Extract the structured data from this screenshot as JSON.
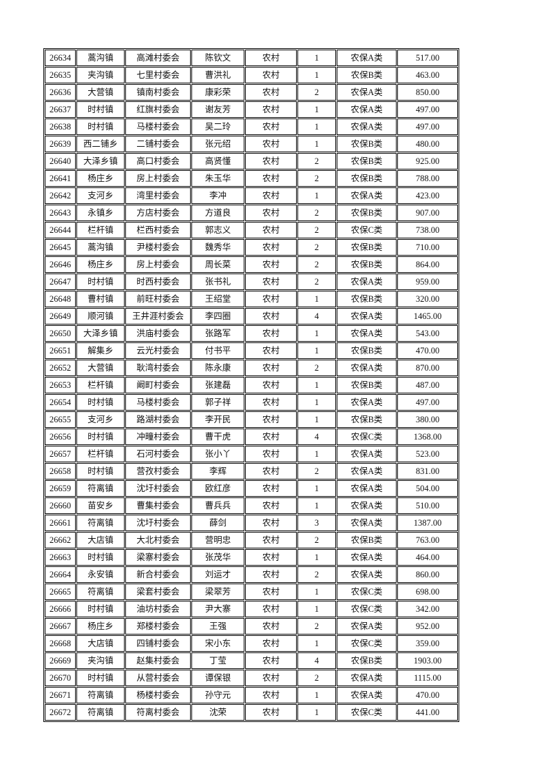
{
  "page": {
    "background_color": "#ffffff",
    "border_color": "#000000",
    "text_color": "#111111"
  },
  "table": {
    "fields": [
      "record-id",
      "town",
      "village-committee",
      "person-name",
      "residence-type",
      "person-count",
      "insurance-category",
      "amount"
    ],
    "rows": [
      [
        "26634",
        "蒿沟镇",
        "高滩村委会",
        "陈钦文",
        "农村",
        "1",
        "农保A类",
        "517.00"
      ],
      [
        "26635",
        "夹沟镇",
        "七里村委会",
        "曹洪礼",
        "农村",
        "1",
        "农保B类",
        "463.00"
      ],
      [
        "26636",
        "大营镇",
        "镇南村委会",
        "康彩荣",
        "农村",
        "2",
        "农保A类",
        "850.00"
      ],
      [
        "26637",
        "时村镇",
        "红旗村委会",
        "谢友芳",
        "农村",
        "1",
        "农保A类",
        "497.00"
      ],
      [
        "26638",
        "时村镇",
        "马楼村委会",
        "吴二玲",
        "农村",
        "1",
        "农保A类",
        "497.00"
      ],
      [
        "26639",
        "西二铺乡",
        "二铺村委会",
        "张元绍",
        "农村",
        "1",
        "农保B类",
        "480.00"
      ],
      [
        "26640",
        "大泽乡镇",
        "高口村委会",
        "高贤懂",
        "农村",
        "2",
        "农保B类",
        "925.00"
      ],
      [
        "26641",
        "杨庄乡",
        "房上村委会",
        "朱玉华",
        "农村",
        "2",
        "农保B类",
        "788.00"
      ],
      [
        "26642",
        "支河乡",
        "湾里村委会",
        "李冲",
        "农村",
        "1",
        "农保A类",
        "423.00"
      ],
      [
        "26643",
        "永镇乡",
        "方店村委会",
        "方道良",
        "农村",
        "2",
        "农保B类",
        "907.00"
      ],
      [
        "26644",
        "栏杆镇",
        "栏西村委会",
        "郭志义",
        "农村",
        "2",
        "农保C类",
        "738.00"
      ],
      [
        "26645",
        "蒿沟镇",
        "尹楼村委会",
        "魏秀华",
        "农村",
        "2",
        "农保B类",
        "710.00"
      ],
      [
        "26646",
        "杨庄乡",
        "房上村委会",
        "周长菜",
        "农村",
        "2",
        "农保B类",
        "864.00"
      ],
      [
        "26647",
        "时村镇",
        "时西村委会",
        "张书礼",
        "农村",
        "2",
        "农保A类",
        "959.00"
      ],
      [
        "26648",
        "曹村镇",
        "前旺村委会",
        "王绍堂",
        "农村",
        "1",
        "农保B类",
        "320.00"
      ],
      [
        "26649",
        "顺河镇",
        "王井涯村委会",
        "李四圈",
        "农村",
        "4",
        "农保A类",
        "1465.00"
      ],
      [
        "26650",
        "大泽乡镇",
        "洪庙村委会",
        "张路军",
        "农村",
        "1",
        "农保A类",
        "543.00"
      ],
      [
        "26651",
        "解集乡",
        "云光村委会",
        "付书平",
        "农村",
        "1",
        "农保B类",
        "470.00"
      ],
      [
        "26652",
        "大营镇",
        "耿湾村委会",
        "陈永康",
        "农村",
        "2",
        "农保A类",
        "870.00"
      ],
      [
        "26653",
        "栏杆镇",
        "阚町村委会",
        "张建磊",
        "农村",
        "1",
        "农保B类",
        "487.00"
      ],
      [
        "26654",
        "时村镇",
        "马楼村委会",
        "郭子祥",
        "农村",
        "1",
        "农保A类",
        "497.00"
      ],
      [
        "26655",
        "支河乡",
        "路湖村委会",
        "李开民",
        "农村",
        "1",
        "农保B类",
        "380.00"
      ],
      [
        "26656",
        "时村镇",
        "冲疃村委会",
        "曹干虎",
        "农村",
        "4",
        "农保C类",
        "1368.00"
      ],
      [
        "26657",
        "栏杆镇",
        "石河村委会",
        "张小丫",
        "农村",
        "1",
        "农保A类",
        "523.00"
      ],
      [
        "26658",
        "时村镇",
        "营孜村委会",
        "李辉",
        "农村",
        "2",
        "农保A类",
        "831.00"
      ],
      [
        "26659",
        "符离镇",
        "沈圩村委会",
        "欧红彦",
        "农村",
        "1",
        "农保A类",
        "504.00"
      ],
      [
        "26660",
        "苗安乡",
        "曹集村委会",
        "曹兵兵",
        "农村",
        "1",
        "农保A类",
        "510.00"
      ],
      [
        "26661",
        "符离镇",
        "沈圩村委会",
        "薛剑",
        "农村",
        "3",
        "农保A类",
        "1387.00"
      ],
      [
        "26662",
        "大店镇",
        "大北村委会",
        "营明忠",
        "农村",
        "2",
        "农保B类",
        "763.00"
      ],
      [
        "26663",
        "时村镇",
        "梁寨村委会",
        "张茂华",
        "农村",
        "1",
        "农保A类",
        "464.00"
      ],
      [
        "26664",
        "永安镇",
        "新合村委会",
        "刘运才",
        "农村",
        "2",
        "农保A类",
        "860.00"
      ],
      [
        "26665",
        "符离镇",
        "梁套村委会",
        "梁翠芳",
        "农村",
        "1",
        "农保C类",
        "698.00"
      ],
      [
        "26666",
        "时村镇",
        "油坊村委会",
        "尹大寨",
        "农村",
        "1",
        "农保C类",
        "342.00"
      ],
      [
        "26667",
        "杨庄乡",
        "郑楼村委会",
        "王强",
        "农村",
        "2",
        "农保A类",
        "952.00"
      ],
      [
        "26668",
        "大店镇",
        "四铺村委会",
        "宋小东",
        "农村",
        "1",
        "农保C类",
        "359.00"
      ],
      [
        "26669",
        "夹沟镇",
        "赵集村委会",
        "丁莹",
        "农村",
        "4",
        "农保B类",
        "1903.00"
      ],
      [
        "26670",
        "时村镇",
        "从营村委会",
        "谭保银",
        "农村",
        "2",
        "农保A类",
        "1115.00"
      ],
      [
        "26671",
        "符离镇",
        "杨楼村委会",
        "孙守元",
        "农村",
        "1",
        "农保A类",
        "470.00"
      ],
      [
        "26672",
        "符离镇",
        "符离村委会",
        "沈荣",
        "农村",
        "1",
        "农保C类",
        "441.00"
      ]
    ]
  }
}
